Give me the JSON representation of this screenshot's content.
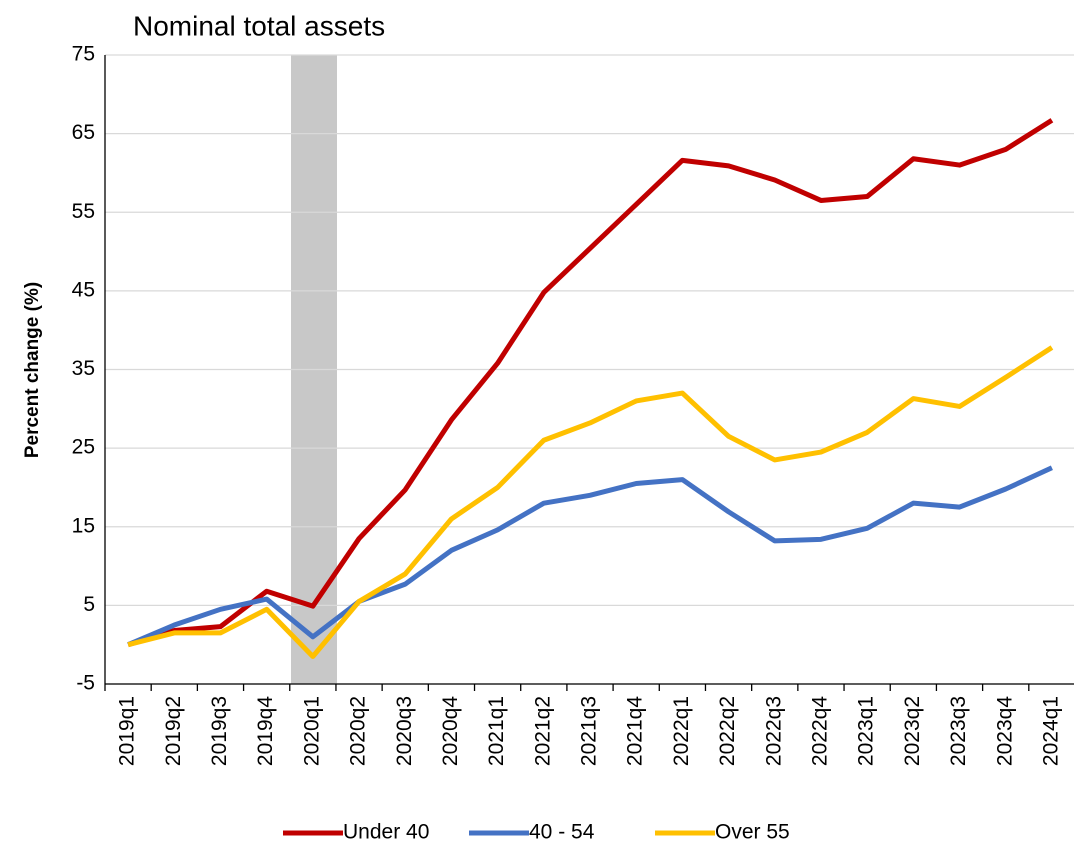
{
  "chart_data": {
    "type": "line",
    "title": "Nominal total assets",
    "y_label": "Percent change (%)",
    "categories": [
      "2019q1",
      "2019q2",
      "2019q3",
      "2019q4",
      "2020q1",
      "2020q2",
      "2020q3",
      "2020q4",
      "2021q1",
      "2021q2",
      "2021q3",
      "2021q4",
      "2022q1",
      "2022q2",
      "2022q3",
      "2022q4",
      "2023q1",
      "2023q2",
      "2023q3",
      "2023q4",
      "2024q1"
    ],
    "series": [
      {
        "name": "Under 40",
        "color": "#c00000",
        "values": [
          0,
          1.8,
          2.3,
          6.8,
          4.9,
          13.5,
          19.7,
          28.6,
          35.8,
          44.8,
          50.4,
          56,
          61.6,
          60.9,
          59.1,
          56.5,
          57,
          61.8,
          61,
          63,
          66.7
        ]
      },
      {
        "name": "40 - 54",
        "color": "#4472c4",
        "values": [
          0,
          2.5,
          4.5,
          5.8,
          1,
          5.5,
          7.7,
          12,
          14.6,
          18,
          19,
          20.5,
          21,
          16.9,
          13.2,
          13.4,
          14.8,
          18,
          17.5,
          19.8,
          22.5
        ]
      },
      {
        "name": "Over 55",
        "color": "#ffc000",
        "values": [
          0,
          1.5,
          1.5,
          4.5,
          -1.5,
          5.5,
          9,
          16,
          20,
          26,
          28.2,
          31,
          32,
          26.5,
          23.5,
          24.5,
          27,
          31.3,
          30.3,
          34,
          37.8
        ]
      }
    ],
    "ylim": [
      -5,
      75
    ],
    "yticks": [
      -5,
      5,
      15,
      25,
      35,
      45,
      55,
      65,
      75
    ],
    "grid": true,
    "legend": "bottom"
  }
}
